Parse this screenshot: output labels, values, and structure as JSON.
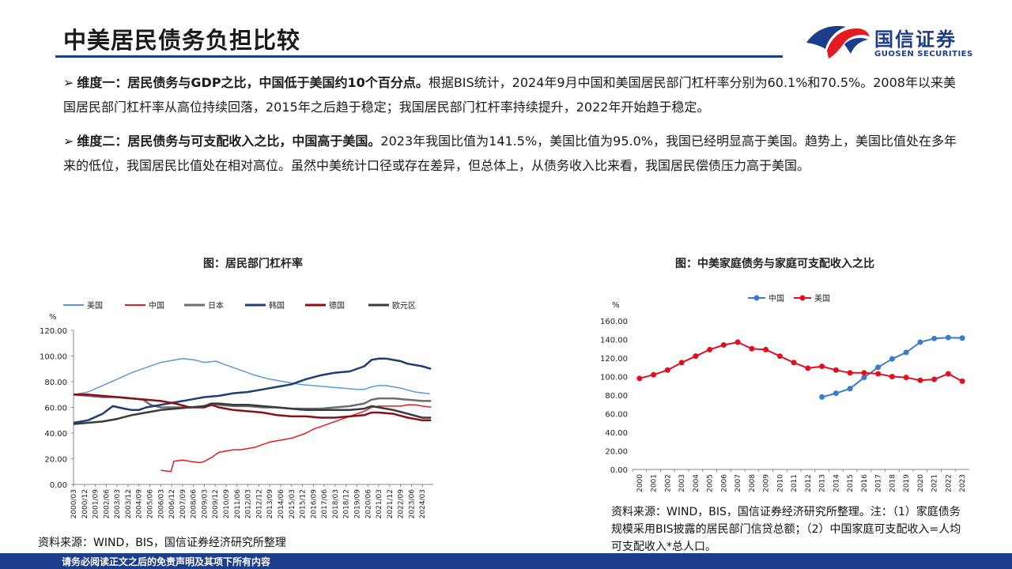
{
  "header": {
    "title": "中美居民债务负担比较",
    "logo_cn": "国信证券",
    "logo_en": "GUOSEN SECURITIES"
  },
  "points": [
    {
      "marker": "➢",
      "bold": "维度一：居民债务与GDP之比，中国低于美国约10个百分点。",
      "text": "根据BIS统计，2024年9月中国和美国居民部门杠杆率分别为60.1%和70.5%。2008年以来美国居民部门杠杆率从高位持续回落，2015年之后趋于稳定；我国居民部门杠杆率持续提升，2022年开始趋于稳定。"
    },
    {
      "marker": "➢",
      "bold": "维度二：居民债务与可支配收入之比，中国高于美国。",
      "text": "2023年我国比值为141.5%，美国比值为95.0%，我国已经明显高于美国。趋势上，美国比值处在多年来的低位，我国居民比值处在相对高位。虽然中美统计口径或存在差异，但总体上，从债务收入比来看，我国居民偿债压力高于美国。"
    }
  ],
  "chart1_title": "图：居民部门杠杆率",
  "chart2_title": "图：中美家庭债务与家庭可支配收入之比",
  "source1": "资料来源：WIND，BIS，国信证券经济研究所整理",
  "source2": "资料来源：WIND，BIS，国信证券经济研究所整理。注：（1）家庭债务规模采用BIS披露的居民部门信贷总额；（2）中国家庭可支配收入=人均可支配收入*总人口。",
  "footer": "请务必阅读正文之后的免责声明及其项下所有内容",
  "chart_data": [
    {
      "type": "line",
      "ylabel": "%",
      "ylim": [
        0,
        120
      ],
      "yticks": [
        "0.00",
        "20.00",
        "40.00",
        "60.00",
        "80.00",
        "100.00",
        "120.00"
      ],
      "x_labels": [
        "2000/03",
        "2000/12",
        "2001/09",
        "2002/06",
        "2003/03",
        "2003/12",
        "2004/09",
        "2005/06",
        "2006/03",
        "2006/12",
        "2007/09",
        "2008/06",
        "2009/03",
        "2009/12",
        "2010/09",
        "2011/06",
        "2012/03",
        "2012/12",
        "2013/09",
        "2014/06",
        "2015/03",
        "2015/12",
        "2016/09",
        "2017/06",
        "2018/03",
        "2018/12",
        "2019/09",
        "2020/06",
        "2021/03",
        "2021/12",
        "2022/09",
        "2023/06",
        "2024/03"
      ],
      "legend_position": "top",
      "series": [
        {
          "name": "美国",
          "color": "#5b9bd5",
          "width": 1.5,
          "points": [
            [
              2000.0,
              70
            ],
            [
              2001.0,
              72
            ],
            [
              2002.0,
              77
            ],
            [
              2003.0,
              82
            ],
            [
              2004.0,
              87
            ],
            [
              2005.0,
              91
            ],
            [
              2006.0,
              95
            ],
            [
              2007.0,
              97
            ],
            [
              2007.5,
              98
            ],
            [
              2008.3,
              97
            ],
            [
              2009.0,
              95
            ],
            [
              2009.8,
              96
            ],
            [
              2010.5,
              93
            ],
            [
              2011.5,
              89
            ],
            [
              2012.5,
              85
            ],
            [
              2013.5,
              82
            ],
            [
              2014.5,
              80
            ],
            [
              2015.5,
              78
            ],
            [
              2016.5,
              77
            ],
            [
              2017.5,
              76
            ],
            [
              2018.5,
              75
            ],
            [
              2019.5,
              74
            ],
            [
              2020.0,
              74
            ],
            [
              2020.5,
              76
            ],
            [
              2021.0,
              77
            ],
            [
              2021.5,
              77
            ],
            [
              2022.5,
              75
            ],
            [
              2023.5,
              72
            ],
            [
              2024.5,
              70.5
            ]
          ]
        },
        {
          "name": "中国",
          "color": "#e31b23",
          "width": 1.5,
          "points": [
            [
              2006.0,
              11
            ],
            [
              2006.7,
              10
            ],
            [
              2006.9,
              18
            ],
            [
              2007.5,
              19
            ],
            [
              2008.0,
              18
            ],
            [
              2008.7,
              17
            ],
            [
              2009.0,
              18
            ],
            [
              2009.5,
              21
            ],
            [
              2010.0,
              25
            ],
            [
              2010.5,
              26
            ],
            [
              2011.0,
              27
            ],
            [
              2011.5,
              27
            ],
            [
              2012.0,
              28
            ],
            [
              2012.5,
              29
            ],
            [
              2013.0,
              31
            ],
            [
              2013.5,
              33
            ],
            [
              2014.0,
              34
            ],
            [
              2014.5,
              35
            ],
            [
              2015.0,
              36
            ],
            [
              2015.5,
              38
            ],
            [
              2016.0,
              40
            ],
            [
              2016.5,
              43
            ],
            [
              2017.0,
              45
            ],
            [
              2017.5,
              47
            ],
            [
              2018.0,
              49
            ],
            [
              2018.5,
              51
            ],
            [
              2019.0,
              53
            ],
            [
              2019.5,
              55
            ],
            [
              2020.0,
              57
            ],
            [
              2020.5,
              60
            ],
            [
              2021.0,
              61
            ],
            [
              2021.5,
              61
            ],
            [
              2022.0,
              61
            ],
            [
              2022.5,
              61
            ],
            [
              2023.0,
              62
            ],
            [
              2023.5,
              62
            ],
            [
              2024.0,
              61
            ],
            [
              2024.6,
              60.1
            ]
          ]
        },
        {
          "name": "日本",
          "color": "#6d6d6d",
          "width": 2.5,
          "points": [
            [
              2000.0,
              70
            ],
            [
              2001.0,
              69
            ],
            [
              2002.0,
              68
            ],
            [
              2003.0,
              68
            ],
            [
              2004.0,
              67
            ],
            [
              2004.8,
              66
            ],
            [
              2005.3,
              62
            ],
            [
              2006.0,
              60
            ],
            [
              2007.0,
              60
            ],
            [
              2008.0,
              60
            ],
            [
              2009.0,
              61
            ],
            [
              2009.5,
              63
            ],
            [
              2010.0,
              62
            ],
            [
              2011.0,
              61
            ],
            [
              2012.0,
              61
            ],
            [
              2013.0,
              60
            ],
            [
              2014.0,
              60
            ],
            [
              2015.0,
              59
            ],
            [
              2016.0,
              59
            ],
            [
              2017.0,
              59
            ],
            [
              2018.0,
              60
            ],
            [
              2019.0,
              61
            ],
            [
              2020.0,
              63
            ],
            [
              2020.5,
              66
            ],
            [
              2021.0,
              67
            ],
            [
              2022.0,
              67
            ],
            [
              2023.0,
              66
            ],
            [
              2024.0,
              65
            ],
            [
              2024.6,
              65
            ]
          ]
        },
        {
          "name": "韩国",
          "color": "#1f3c73",
          "width": 2.5,
          "points": [
            [
              2000.0,
              48
            ],
            [
              2001.0,
              50
            ],
            [
              2002.0,
              55
            ],
            [
              2002.7,
              61
            ],
            [
              2003.5,
              59
            ],
            [
              2004.0,
              58
            ],
            [
              2004.5,
              58
            ],
            [
              2005.0,
              60
            ],
            [
              2006.0,
              62
            ],
            [
              2007.0,
              64
            ],
            [
              2008.0,
              66
            ],
            [
              2009.0,
              68
            ],
            [
              2010.0,
              69
            ],
            [
              2011.0,
              71
            ],
            [
              2012.0,
              72
            ],
            [
              2013.0,
              74
            ],
            [
              2014.0,
              76
            ],
            [
              2015.0,
              78
            ],
            [
              2016.0,
              82
            ],
            [
              2017.0,
              85
            ],
            [
              2018.0,
              87
            ],
            [
              2019.0,
              88
            ],
            [
              2020.0,
              92
            ],
            [
              2020.5,
              97
            ],
            [
              2021.0,
              98
            ],
            [
              2021.5,
              98
            ],
            [
              2022.0,
              97
            ],
            [
              2022.5,
              96
            ],
            [
              2023.0,
              94
            ],
            [
              2023.5,
              93
            ],
            [
              2024.0,
              92
            ],
            [
              2024.6,
              90
            ]
          ]
        },
        {
          "name": "德国",
          "color": "#8b0f18",
          "width": 2.5,
          "points": [
            [
              2000.0,
              70
            ],
            [
              2001.0,
              70
            ],
            [
              2002.0,
              69
            ],
            [
              2003.0,
              68
            ],
            [
              2004.0,
              67
            ],
            [
              2005.0,
              66
            ],
            [
              2006.0,
              65
            ],
            [
              2007.0,
              63
            ],
            [
              2008.0,
              60
            ],
            [
              2009.0,
              60
            ],
            [
              2009.5,
              62
            ],
            [
              2010.0,
              60
            ],
            [
              2011.0,
              58
            ],
            [
              2012.0,
              57
            ],
            [
              2013.0,
              56
            ],
            [
              2014.0,
              54
            ],
            [
              2015.0,
              53
            ],
            [
              2016.0,
              53
            ],
            [
              2017.0,
              52
            ],
            [
              2018.0,
              52
            ],
            [
              2019.0,
              53
            ],
            [
              2020.0,
              54
            ],
            [
              2020.5,
              56
            ],
            [
              2021.0,
              56
            ],
            [
              2022.0,
              55
            ],
            [
              2023.0,
              52
            ],
            [
              2024.0,
              50
            ],
            [
              2024.6,
              50
            ]
          ]
        },
        {
          "name": "欧元区",
          "color": "#3a3a3a",
          "width": 2.5,
          "points": [
            [
              2000.0,
              47
            ],
            [
              2001.0,
              48
            ],
            [
              2002.0,
              49
            ],
            [
              2003.0,
              51
            ],
            [
              2004.0,
              54
            ],
            [
              2005.0,
              56
            ],
            [
              2006.0,
              58
            ],
            [
              2007.0,
              59
            ],
            [
              2008.0,
              60
            ],
            [
              2009.0,
              61
            ],
            [
              2009.5,
              63
            ],
            [
              2010.0,
              63
            ],
            [
              2011.0,
              62
            ],
            [
              2012.0,
              62
            ],
            [
              2013.0,
              61
            ],
            [
              2014.0,
              60
            ],
            [
              2015.0,
              59
            ],
            [
              2016.0,
              58
            ],
            [
              2017.0,
              58
            ],
            [
              2018.0,
              58
            ],
            [
              2019.0,
              58
            ],
            [
              2020.0,
              59
            ],
            [
              2020.5,
              61
            ],
            [
              2021.0,
              60
            ],
            [
              2022.0,
              58
            ],
            [
              2023.0,
              55
            ],
            [
              2024.0,
              52
            ],
            [
              2024.6,
              52
            ]
          ]
        }
      ]
    },
    {
      "type": "line",
      "ylabel": "%",
      "ylim": [
        0,
        160
      ],
      "yticks": [
        "0.00",
        "20.00",
        "40.00",
        "60.00",
        "80.00",
        "100.00",
        "120.00",
        "140.00",
        "160.00"
      ],
      "categories": [
        "2000",
        "2001",
        "2002",
        "2003",
        "2004",
        "2005",
        "2006",
        "2007",
        "2008",
        "2009",
        "2010",
        "2011",
        "2012",
        "2013",
        "2014",
        "2015",
        "2016",
        "2017",
        "2018",
        "2019",
        "2020",
        "2021",
        "2022",
        "2023"
      ],
      "legend_position": "top",
      "series": [
        {
          "name": "中国",
          "color": "#3a7cc8",
          "values": [
            null,
            null,
            null,
            null,
            null,
            null,
            null,
            null,
            null,
            null,
            null,
            null,
            null,
            78,
            82,
            87,
            99,
            110,
            119,
            126,
            137,
            141,
            142,
            141.5
          ]
        },
        {
          "name": "美国",
          "color": "#e0101f",
          "values": [
            98,
            102,
            107,
            115,
            122,
            129,
            134,
            137,
            130,
            129,
            122,
            115,
            109,
            111,
            107,
            104,
            104,
            103,
            100,
            99,
            96,
            97,
            103,
            95.0
          ]
        }
      ]
    }
  ]
}
